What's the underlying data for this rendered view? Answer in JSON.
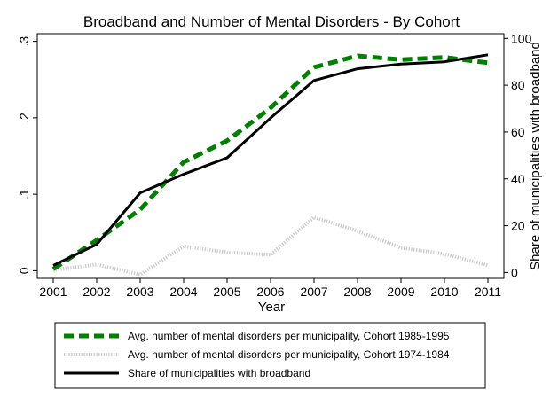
{
  "chart_data": {
    "type": "line",
    "title": "Broadband and Number of Mental Disorders - By Cohort",
    "xlabel": "Year",
    "ylabel_left": "",
    "ylabel_right": "Share of municipalities with broadband",
    "x": [
      2001,
      2002,
      2003,
      2004,
      2005,
      2006,
      2007,
      2008,
      2009,
      2010,
      2011
    ],
    "x_ticks": [
      "2001",
      "2002",
      "2003",
      "2004",
      "2005",
      "2006",
      "2007",
      "2008",
      "2009",
      "2010",
      "2011"
    ],
    "y_left_ticks": [
      {
        "value": 0,
        "label": "0"
      },
      {
        "value": 0.1,
        "label": ".1"
      },
      {
        "value": 0.2,
        "label": ".2"
      },
      {
        "value": 0.3,
        "label": ".3"
      }
    ],
    "y_right_ticks": [
      {
        "value": 0,
        "label": "0"
      },
      {
        "value": 20,
        "label": "20"
      },
      {
        "value": 40,
        "label": "40"
      },
      {
        "value": 60,
        "label": "60"
      },
      {
        "value": 80,
        "label": "80"
      },
      {
        "value": 100,
        "label": "100"
      }
    ],
    "ylim_left": [
      -0.01,
      0.31
    ],
    "ylim_right": [
      -2.5,
      102
    ],
    "grid": false,
    "legend_position": "bottom",
    "series": [
      {
        "name": "Avg. number of mental disorders per municipality, Cohort 1985-1995",
        "axis": "left",
        "style": "dashed",
        "color": "#008000",
        "values": [
          0.002,
          0.04,
          0.08,
          0.142,
          0.17,
          0.213,
          0.266,
          0.281,
          0.276,
          0.279,
          0.272
        ]
      },
      {
        "name": "Avg. number of mental disorders per municipality, Cohort 1974-1984",
        "axis": "left",
        "style": "dotted",
        "color": "#c8c8c8",
        "values": [
          0.001,
          0.008,
          -0.005,
          0.032,
          0.024,
          0.021,
          0.07,
          0.052,
          0.03,
          0.022,
          0.007
        ]
      },
      {
        "name": "Share of municipalities with broadband",
        "axis": "right",
        "style": "solid",
        "color": "#000000",
        "values": [
          3,
          12,
          34,
          42,
          49,
          66,
          82,
          87,
          89,
          90,
          93
        ]
      }
    ]
  }
}
